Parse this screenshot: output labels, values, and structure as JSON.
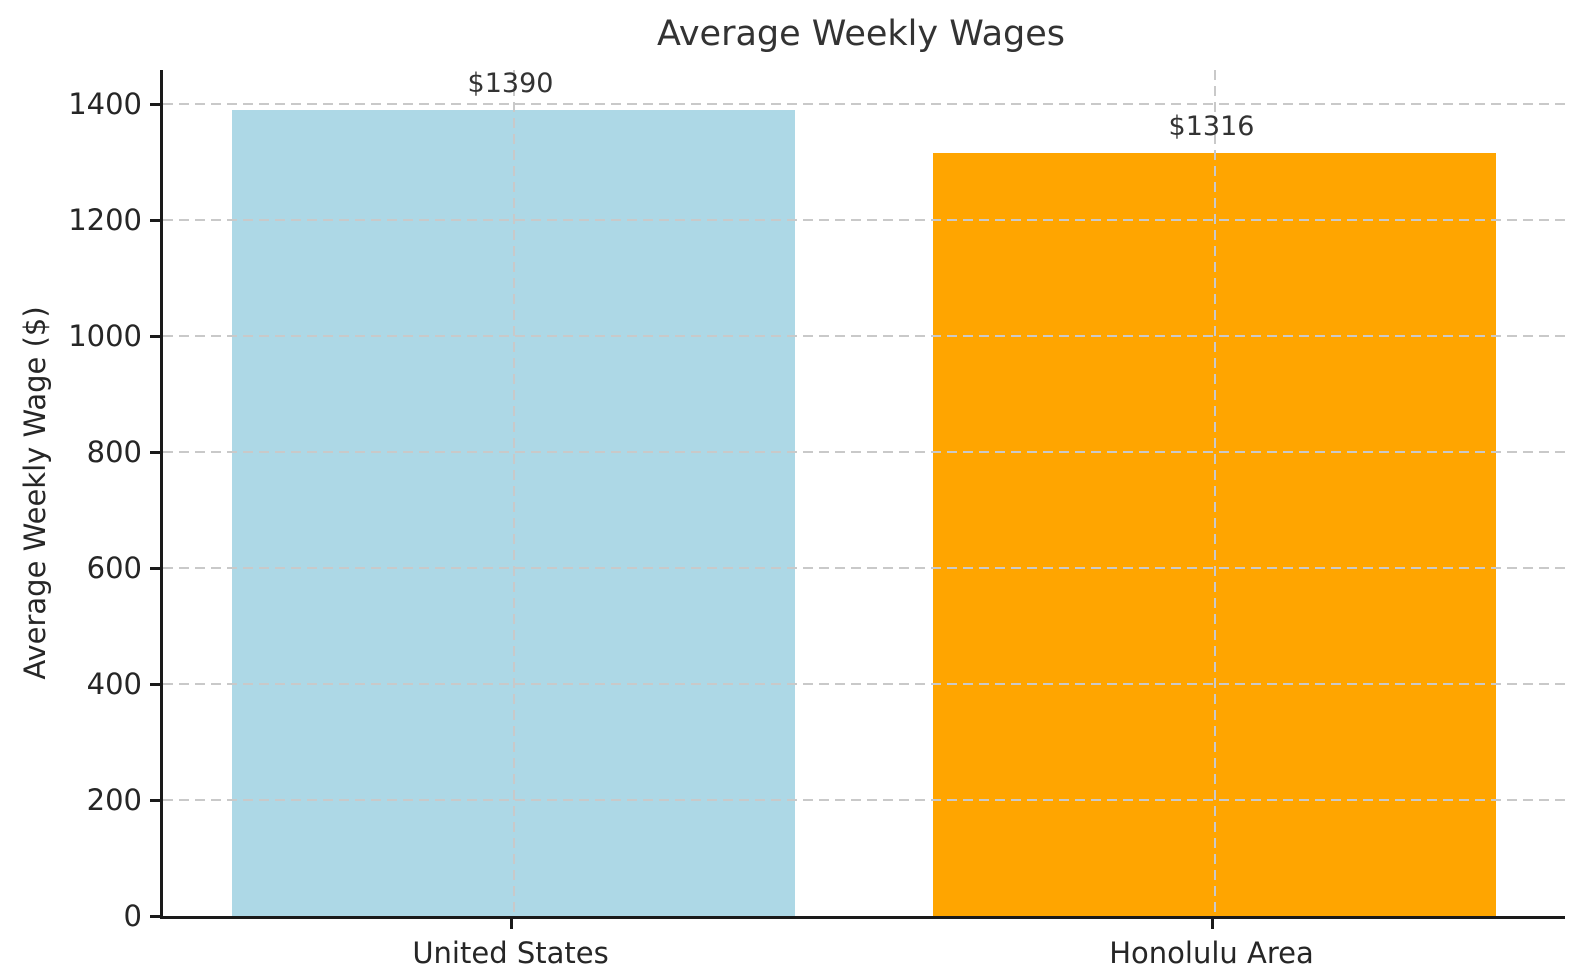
{
  "chart_data": {
    "type": "bar",
    "title": "Average Weekly Wages",
    "xlabel": "",
    "ylabel": "Average Weekly Wage ($)",
    "categories": [
      "United States",
      "Honolulu Area"
    ],
    "values": [
      1390,
      1316
    ],
    "bar_value_labels": [
      "$1390",
      "$1316"
    ],
    "bar_colors": [
      "#ADD8E6",
      "#FFA500"
    ],
    "ylim": [
      0,
      1459.5
    ],
    "yticks": [
      0,
      200,
      400,
      600,
      800,
      1000,
      1200,
      1400
    ],
    "grid": "dashed-both-axes-on-top-of-bars",
    "legend_position": "none",
    "bar_width_fraction_of_plot": 0.402
  },
  "colors": {
    "background": "#ffffff",
    "grid": "#c9c9c9",
    "spine": "#1a1a1a",
    "tick_text": "#262626",
    "title_text": "#333333"
  }
}
